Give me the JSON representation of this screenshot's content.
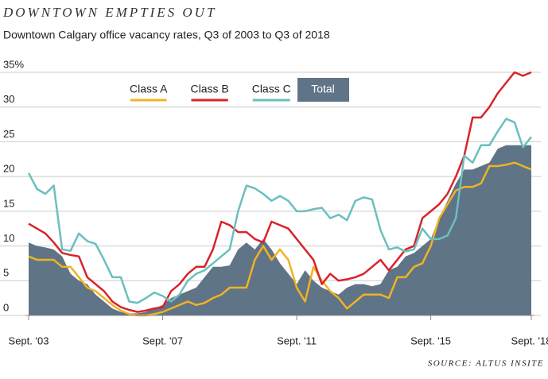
{
  "chart_data": {
    "type": "line",
    "title": "DOWNTOWN EMPTIES OUT",
    "subtitle": "Downtown Calgary office vacancy rates, Q3 of 2003 to Q3 of 2018",
    "source": "SOURCE: ALTUS INSITE",
    "categories": [
      "Sept. '03",
      null,
      null,
      null,
      null,
      null,
      null,
      null,
      null,
      null,
      null,
      null,
      null,
      null,
      null,
      null,
      "Sept. '07",
      null,
      null,
      null,
      null,
      null,
      null,
      null,
      null,
      null,
      null,
      null,
      null,
      null,
      null,
      null,
      "Sept. '11",
      null,
      null,
      null,
      null,
      null,
      null,
      null,
      null,
      null,
      null,
      null,
      null,
      null,
      null,
      null,
      "Sept. '15",
      null,
      null,
      null,
      null,
      null,
      null,
      null,
      null,
      null,
      null,
      null,
      "Sept. '18"
    ],
    "ylim": [
      0,
      35
    ],
    "yticks": [
      0,
      5,
      10,
      15,
      20,
      25,
      30,
      {
        "value": 35,
        "label": "35%"
      }
    ],
    "grid": true,
    "series": [
      {
        "name": "Total",
        "color": "#5f7486",
        "area": true,
        "values": [
          10.5,
          10,
          9.8,
          9.5,
          8.5,
          6,
          5,
          4.5,
          3,
          2,
          1,
          0.5,
          0.3,
          0.3,
          0.5,
          1,
          1.5,
          2.5,
          3,
          3.5,
          4,
          5.5,
          7,
          7,
          7.2,
          9.5,
          10.5,
          9.5,
          11,
          9.5,
          7.5,
          6,
          4.5,
          6.5,
          5,
          4,
          3.5,
          3,
          4,
          4.5,
          4.5,
          4.2,
          4.5,
          6.5,
          7,
          8.5,
          9,
          10,
          11,
          14,
          16.5,
          19,
          21,
          21,
          21.5,
          22,
          24,
          24.5,
          24.5,
          24.5,
          24.5
        ]
      },
      {
        "name": "Class A",
        "color": "#f0b323",
        "values": [
          8.5,
          8,
          8,
          8,
          7,
          7,
          5.5,
          4,
          3.5,
          2.5,
          1.5,
          0.7,
          0.2,
          0,
          0,
          0.2,
          0.5,
          1,
          1.5,
          2,
          1.5,
          1.8,
          2.5,
          3,
          4,
          4,
          4,
          8,
          10,
          8,
          9.5,
          8,
          4,
          2,
          7,
          5,
          3.5,
          2.5,
          1,
          2,
          3,
          3,
          3,
          2.5,
          5.5,
          5.5,
          7,
          7.5,
          10,
          14,
          16,
          18,
          18.5,
          18.5,
          19,
          21.5,
          21.5,
          21.7,
          22,
          21.5,
          21
        ]
      },
      {
        "name": "Class B",
        "color": "#d9232a",
        "values": [
          13.2,
          12.5,
          11.8,
          10.5,
          9,
          8.7,
          8.5,
          5.5,
          4.5,
          3.5,
          2,
          1.2,
          0.8,
          0.5,
          0.7,
          1,
          1.2,
          3.5,
          4.5,
          6,
          7,
          7,
          9.5,
          13.5,
          13,
          12,
          12,
          11,
          10.5,
          13.5,
          13,
          12.5,
          11,
          9.5,
          8,
          4.5,
          6,
          5,
          5.2,
          5.5,
          6,
          7,
          8,
          6.5,
          8,
          9.5,
          10,
          14,
          15,
          16,
          17.5,
          20,
          23,
          28.5,
          28.5,
          30,
          32,
          33.5,
          35,
          34.5,
          35
        ]
      },
      {
        "name": "Class C",
        "color": "#6bbfbf",
        "values": [
          20.5,
          18.2,
          17.5,
          18.7,
          9.5,
          9.3,
          11.8,
          10.7,
          10.3,
          8,
          5.5,
          5.5,
          2,
          1.8,
          2.5,
          3.3,
          2.8,
          2,
          3,
          5,
          6,
          6.5,
          7.5,
          8.5,
          9.5,
          15,
          18.7,
          18.3,
          17.5,
          16.5,
          17.2,
          16.5,
          15,
          15,
          15.3,
          15.5,
          14,
          14.5,
          13.7,
          16.5,
          17,
          16.7,
          12.3,
          9.5,
          9.8,
          9.2,
          9.5,
          12.5,
          11,
          11,
          11.5,
          14,
          23,
          22,
          24.5,
          24.5,
          26.5,
          28.3,
          27.8,
          24.2,
          25.7
        ]
      }
    ]
  }
}
